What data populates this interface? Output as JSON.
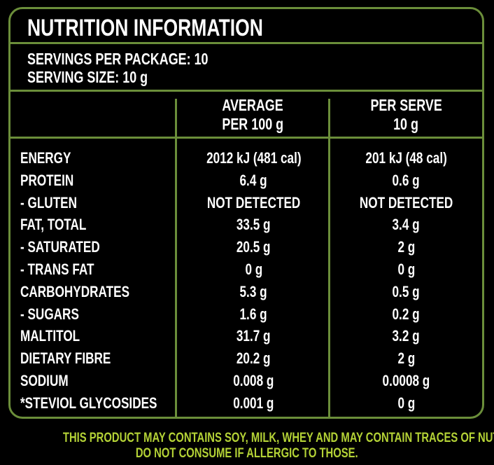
{
  "title": "NUTRITION INFORMATION",
  "servings_per_package": "SERVINGS PER PACKAGE: 10",
  "serving_size": "SERVING SIZE: 10 g",
  "columns": {
    "per100_line1": "AVERAGE",
    "per100_line2": "PER 100 g",
    "perserve_line1": "PER SERVE",
    "perserve_line2": "10 g"
  },
  "rows": [
    {
      "name": "ENERGY",
      "per100": "2012 kJ (481 cal)",
      "perserve": "201 kJ (48 cal)"
    },
    {
      "name": "PROTEIN",
      "per100": "6.4 g",
      "perserve": "0.6 g"
    },
    {
      "name": "- GLUTEN",
      "per100": "NOT DETECTED",
      "perserve": "NOT DETECTED"
    },
    {
      "name": "FAT, TOTAL",
      "per100": "33.5 g",
      "perserve": "3.4 g"
    },
    {
      "name": "- SATURATED",
      "per100": "20.5 g",
      "perserve": "2 g"
    },
    {
      "name": "- TRANS FAT",
      "per100": "0 g",
      "perserve": "0 g"
    },
    {
      "name": "CARBOHYDRATES",
      "per100": "5.3 g",
      "perserve": "0.5 g"
    },
    {
      "name": "- SUGARS",
      "per100": "1.6 g",
      "perserve": "0.2 g"
    },
    {
      "name": "MALTITOL",
      "per100": "31.7 g",
      "perserve": "3.2 g"
    },
    {
      "name": "DIETARY FIBRE",
      "per100": "20.2 g",
      "perserve": "2 g"
    },
    {
      "name": "SODIUM",
      "per100": "0.008 g",
      "perserve": "0.0008 g"
    },
    {
      "name": "*STEVIOL GLYCOSIDES",
      "per100": "0.001 g",
      "perserve": "0 g"
    }
  ],
  "footer": {
    "line1": "THIS PRODUCT MAY CONTAINS SOY, MILK, WHEY AND MAY CONTAIN TRACES OF NUTS.",
    "line2": "DO NOT CONSUME IF ALLERGIC TO THOSE."
  },
  "colors": {
    "border": "#6b8e3a",
    "footer_text": "#b4d236",
    "background": "#000000"
  }
}
